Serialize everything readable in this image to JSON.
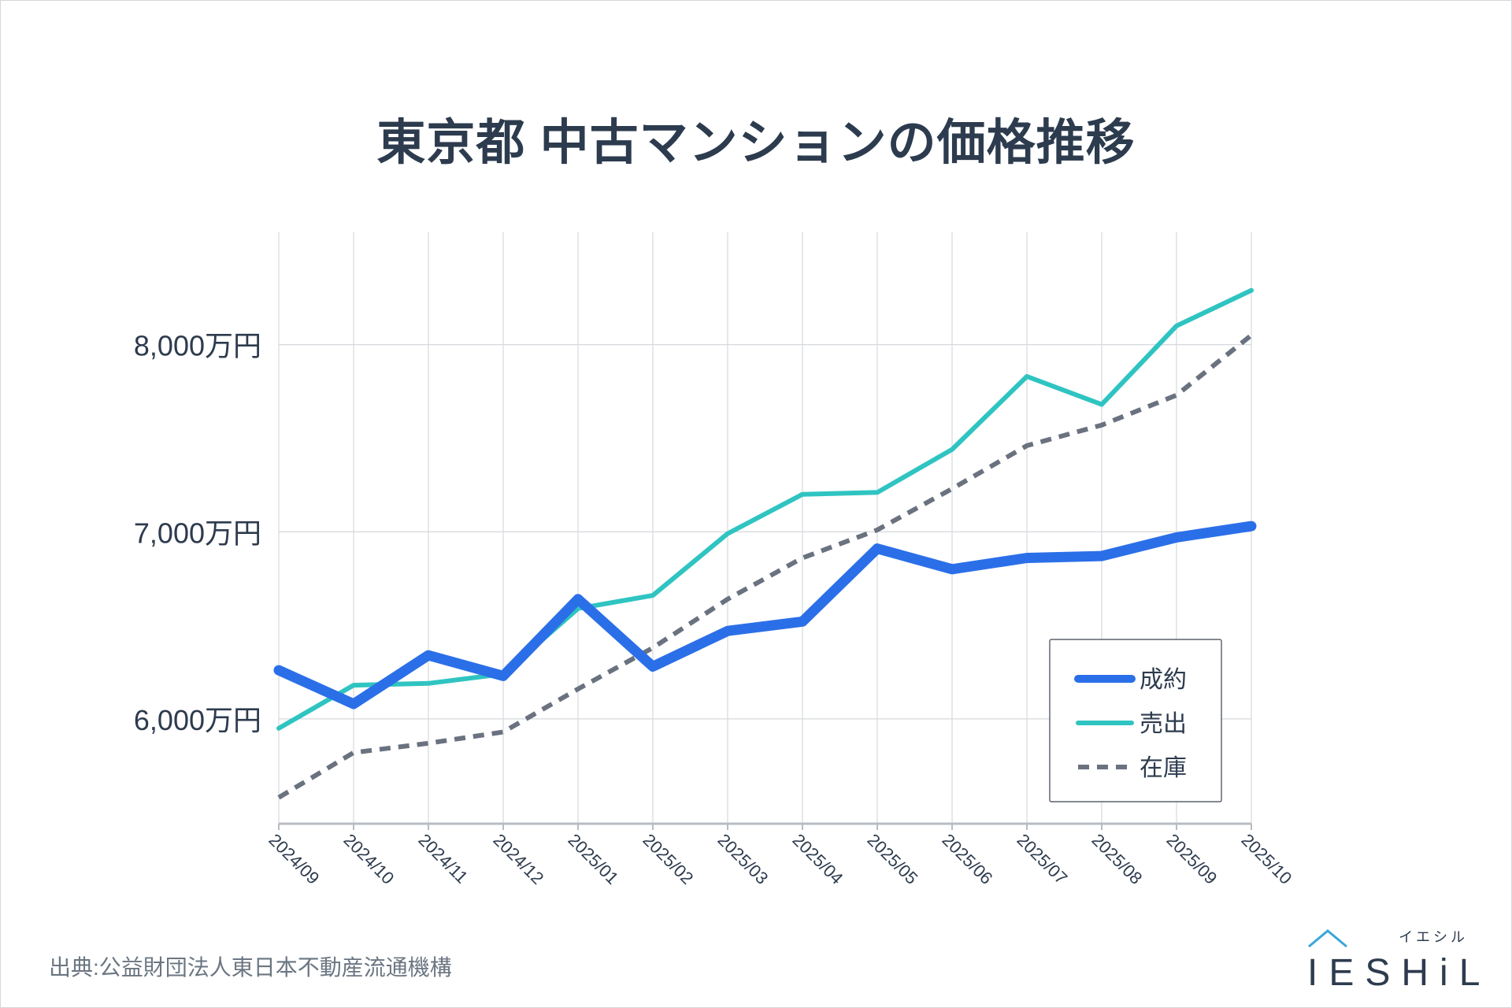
{
  "title": "東京都 中古マンションの価格推移",
  "source": "出典:公益財団法人東日本不動産流通機構",
  "logo": {
    "kana": "イエシル",
    "text": "IESHiL"
  },
  "colors": {
    "contract": "#2b6fe8",
    "listing": "#2fc4c1",
    "inventory": "#6a7280",
    "grid": "#d6d8dc",
    "text": "#2d3b4e"
  },
  "chart_data": {
    "type": "line",
    "title": "東京都 中古マンションの価格推移",
    "categories": [
      "2024/09",
      "2024/10",
      "2024/11",
      "2024/12",
      "2025/01",
      "2025/02",
      "2025/03",
      "2025/04",
      "2025/05",
      "2025/06",
      "2025/07",
      "2025/08",
      "2025/09",
      "2025/10"
    ],
    "y_ticks": [
      6000,
      7000,
      8000
    ],
    "y_tick_labels": [
      "6,000万円",
      "7,000万円",
      "8,000万円"
    ],
    "ylim": [
      5440,
      8600
    ],
    "grid": true,
    "legend_position": "bottom-right",
    "series": [
      {
        "name": "成約",
        "style": "thick-solid",
        "values": [
          6260,
          6080,
          6340,
          6230,
          6640,
          6280,
          6470,
          6520,
          6910,
          6800,
          6860,
          6870,
          6970,
          7030
        ]
      },
      {
        "name": "売出",
        "style": "solid",
        "values": [
          5950,
          6180,
          6190,
          6240,
          6590,
          6660,
          6990,
          7200,
          7210,
          7440,
          7830,
          7680,
          8100,
          8290
        ]
      },
      {
        "name": "在庫",
        "style": "dashed",
        "values": [
          5580,
          5820,
          5870,
          5930,
          6160,
          6380,
          6640,
          6860,
          7010,
          7230,
          7460,
          7570,
          7730,
          8050
        ]
      }
    ]
  }
}
